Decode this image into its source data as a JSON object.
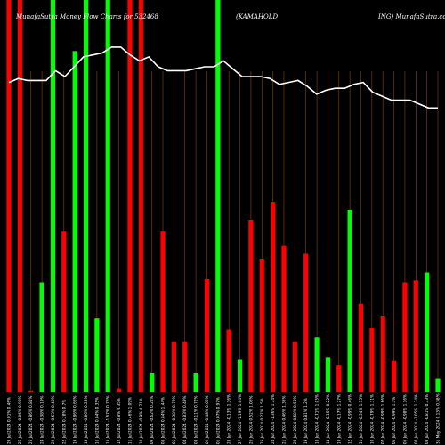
{
  "header": {
    "title_left": "MunafaSutra Money Flow Charts for 532468",
    "title_mid": "(KAMAHOLD",
    "title_right": "ING) MunafaSutra.com"
  },
  "colors": {
    "background": "#000000",
    "up": "#00ff00",
    "down": "#ff0000",
    "grid": "#8b4513",
    "line": "#ffffff"
  },
  "chart_data": {
    "type": "bar",
    "bars": [
      {
        "label": "29 Jul 2024 0.01% 0.46%",
        "dir": "down",
        "value": 100
      },
      {
        "label": "26 Jul 2024 -0.06% 0.98%",
        "dir": "down",
        "value": 100
      },
      {
        "label": "25 Jul 2024 -0.86% 0.81%",
        "dir": "down",
        "value": 0.5
      },
      {
        "label": "24 Jul 2024 -0.38% 0.19%",
        "dir": "up",
        "value": 28
      },
      {
        "label": "23 Jul 2024 -0.63% 0.48%",
        "dir": "up",
        "value": 100
      },
      {
        "label": "22 Jul 2024 0.28% 0.7%",
        "dir": "down",
        "value": 41
      },
      {
        "label": "19 Jul 2024 -0.86% 0.66%",
        "dir": "up",
        "value": 87
      },
      {
        "label": "18 Jul 2024 -0.86% 0.28%",
        "dir": "up",
        "value": 100
      },
      {
        "label": "16 Jul 2024 0.84% 0.35%",
        "dir": "up",
        "value": 19
      },
      {
        "label": "15 Jul 2024 -1.67% 0.76%",
        "dir": "up",
        "value": 100
      },
      {
        "label": "12 Jul 2024 -0.8% 0.35%",
        "dir": "down",
        "value": 1
      },
      {
        "label": "11 Jul 2024 0.46% 1.09%",
        "dir": "down",
        "value": 100
      },
      {
        "label": "10 Jul 2024 -0.9% 0.71%",
        "dir": "down",
        "value": 100
      },
      {
        "label": "09 Jul 2024 -0.62% 0.21%",
        "dir": "up",
        "value": 5
      },
      {
        "label": "08 Jul 2024 0.84% 1.44%",
        "dir": "down",
        "value": 41
      },
      {
        "label": "05 Jul 2024 -0.38% 0.72%",
        "dir": "down",
        "value": 13
      },
      {
        "label": "04 Jul 2024 -0.83% 0.49%",
        "dir": "down",
        "value": 13
      },
      {
        "label": "03 Jul 2024 -0.11% 0.72%",
        "dir": "up",
        "value": 5
      },
      {
        "label": "02 Jul 2024 -0.48% 0.66%",
        "dir": "down",
        "value": 29
      },
      {
        "label": "01 Jul 2024 0.07% 0.97%",
        "dir": "up",
        "value": 100
      },
      {
        "label": "28 Jun 2024 -0.13% 1.16%",
        "dir": "down",
        "value": 16
      },
      {
        "label": "27 Jun 2024 -1.19% 1.64%",
        "dir": "up",
        "value": 8.5
      },
      {
        "label": "26 Jun 2024 0.52% 1.06%",
        "dir": "down",
        "value": 44
      },
      {
        "label": "25 Jun 2024 0.27% 1.5%",
        "dir": "down",
        "value": 34
      },
      {
        "label": "24 Jun 2024 -1.36% 1.74%",
        "dir": "down",
        "value": 48.5
      },
      {
        "label": "21 Jun 2024 0.46% 1.35%",
        "dir": "down",
        "value": 37.5
      },
      {
        "label": "20 Jun 2024 0.68% 0.58%",
        "dir": "down",
        "value": 13
      },
      {
        "label": "19 Jun 2024 0.81% 1.2%",
        "dir": "down",
        "value": 35.5
      },
      {
        "label": "18 Jun 2024 -0.71% 1.05%",
        "dir": "up",
        "value": 14
      },
      {
        "label": "14 Jun 2024 -0.15% 0.22%",
        "dir": "up",
        "value": 9
      },
      {
        "label": "13 Jun 2024 -0.17% 1.27%",
        "dir": "down",
        "value": 7
      },
      {
        "label": "12 Jun 2024 -0.99% 0.46%",
        "dir": "up",
        "value": 46.5
      },
      {
        "label": "11 Jun 2024 -0.54% 1.35%",
        "dir": "down",
        "value": 22.5
      },
      {
        "label": "10 Jun 2024 -0.79% 1.31%",
        "dir": "down",
        "value": 16.5
      },
      {
        "label": "07 Jun 2024 -0.99% 1.66%",
        "dir": "down",
        "value": 19.5
      },
      {
        "label": "06 Jun 2024 -0.99% 1.1%",
        "dir": "down",
        "value": 8
      },
      {
        "label": "05 Jun 2024 -0.98% 1.16%",
        "dir": "down",
        "value": 28
      },
      {
        "label": "04 Jun 2024 -1.05% 1.74%",
        "dir": "down",
        "value": 28.5
      },
      {
        "label": "03 Jun 2024 -0.81% 0.73%",
        "dir": "up",
        "value": 30.5
      },
      {
        "label": "31 May 2024 0.13% 0.58%",
        "dir": "up",
        "value": 3.5
      }
    ],
    "line": [
      79,
      80,
      79.5,
      79.5,
      79.5,
      82,
      80.5,
      83,
      85.5,
      86,
      86.5,
      88,
      88,
      86,
      84.5,
      85.5,
      83,
      82,
      82,
      82,
      82.5,
      83,
      83,
      84.5,
      82.5,
      80.5,
      80.5,
      80.5,
      80,
      78.5,
      79,
      79.5,
      78,
      76,
      77,
      77.5,
      77.5,
      78.5,
      79,
      76.5,
      75.5,
      74.5,
      74.5,
      74.5,
      73.5,
      72.5,
      72.5
    ]
  }
}
